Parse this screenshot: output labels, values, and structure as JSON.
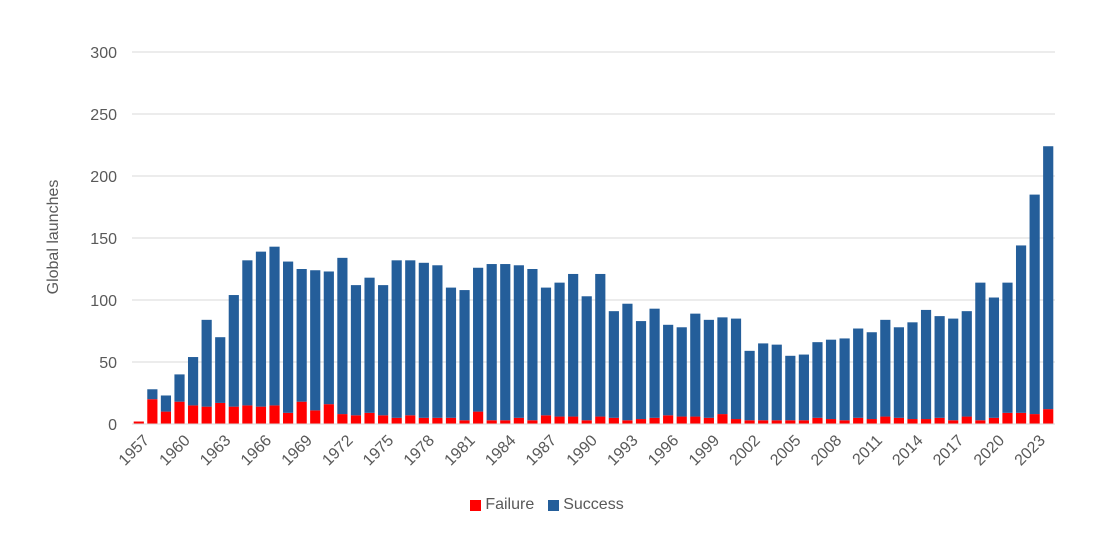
{
  "chart_data": {
    "type": "bar",
    "stacked": true,
    "title": "",
    "xlabel": "",
    "ylabel": "Global launches",
    "ylim": [
      0,
      300
    ],
    "yticks": [
      0,
      50,
      100,
      150,
      200,
      250,
      300
    ],
    "grid": true,
    "legend_position": "bottom",
    "categories": [
      1957,
      1958,
      1959,
      1960,
      1961,
      1962,
      1963,
      1964,
      1965,
      1966,
      1967,
      1968,
      1969,
      1970,
      1971,
      1972,
      1973,
      1974,
      1975,
      1976,
      1977,
      1978,
      1979,
      1980,
      1981,
      1982,
      1983,
      1984,
      1985,
      1986,
      1987,
      1988,
      1989,
      1990,
      1991,
      1992,
      1993,
      1994,
      1995,
      1996,
      1997,
      1998,
      1999,
      2000,
      2001,
      2002,
      2003,
      2004,
      2005,
      2006,
      2007,
      2008,
      2009,
      2010,
      2011,
      2012,
      2013,
      2014,
      2015,
      2016,
      2017,
      2018,
      2019,
      2020,
      2021,
      2022,
      2023,
      2024
    ],
    "tick_labels": [
      "1957",
      "1960",
      "1963",
      "1966",
      "1969",
      "1972",
      "1975",
      "1978",
      "1981",
      "1984",
      "1987",
      "1990",
      "1993",
      "1996",
      "1999",
      "2002",
      "2005",
      "2008",
      "2011",
      "2014",
      "2017",
      "2020",
      "2023"
    ],
    "series": [
      {
        "name": "Failure",
        "color": "#ff0000",
        "values": [
          2,
          20,
          10,
          18,
          15,
          14,
          17,
          14,
          15,
          14,
          15,
          9,
          18,
          11,
          16,
          8,
          7,
          9,
          7,
          5,
          7,
          5,
          5,
          5,
          3,
          10,
          3,
          3,
          5,
          3,
          7,
          6,
          6,
          3,
          6,
          5,
          3,
          4,
          5,
          7,
          6,
          6,
          5,
          8,
          4,
          3,
          3,
          3,
          3,
          3,
          5,
          4,
          3,
          5,
          4,
          6,
          5,
          4,
          4,
          5,
          3,
          6,
          3,
          5,
          9,
          9,
          8,
          12
        ]
      },
      {
        "name": "Success",
        "color": "#245e9a",
        "values": [
          0,
          8,
          13,
          22,
          39,
          70,
          53,
          90,
          117,
          125,
          128,
          122,
          107,
          113,
          107,
          126,
          105,
          109,
          105,
          127,
          125,
          125,
          123,
          105,
          105,
          116,
          126,
          126,
          123,
          122,
          103,
          108,
          115,
          100,
          115,
          86,
          94,
          79,
          88,
          73,
          72,
          83,
          79,
          78,
          81,
          56,
          62,
          61,
          52,
          53,
          61,
          64,
          66,
          72,
          70,
          78,
          73,
          78,
          88,
          82,
          82,
          85,
          111,
          97,
          105,
          135,
          177,
          212
        ]
      }
    ]
  }
}
